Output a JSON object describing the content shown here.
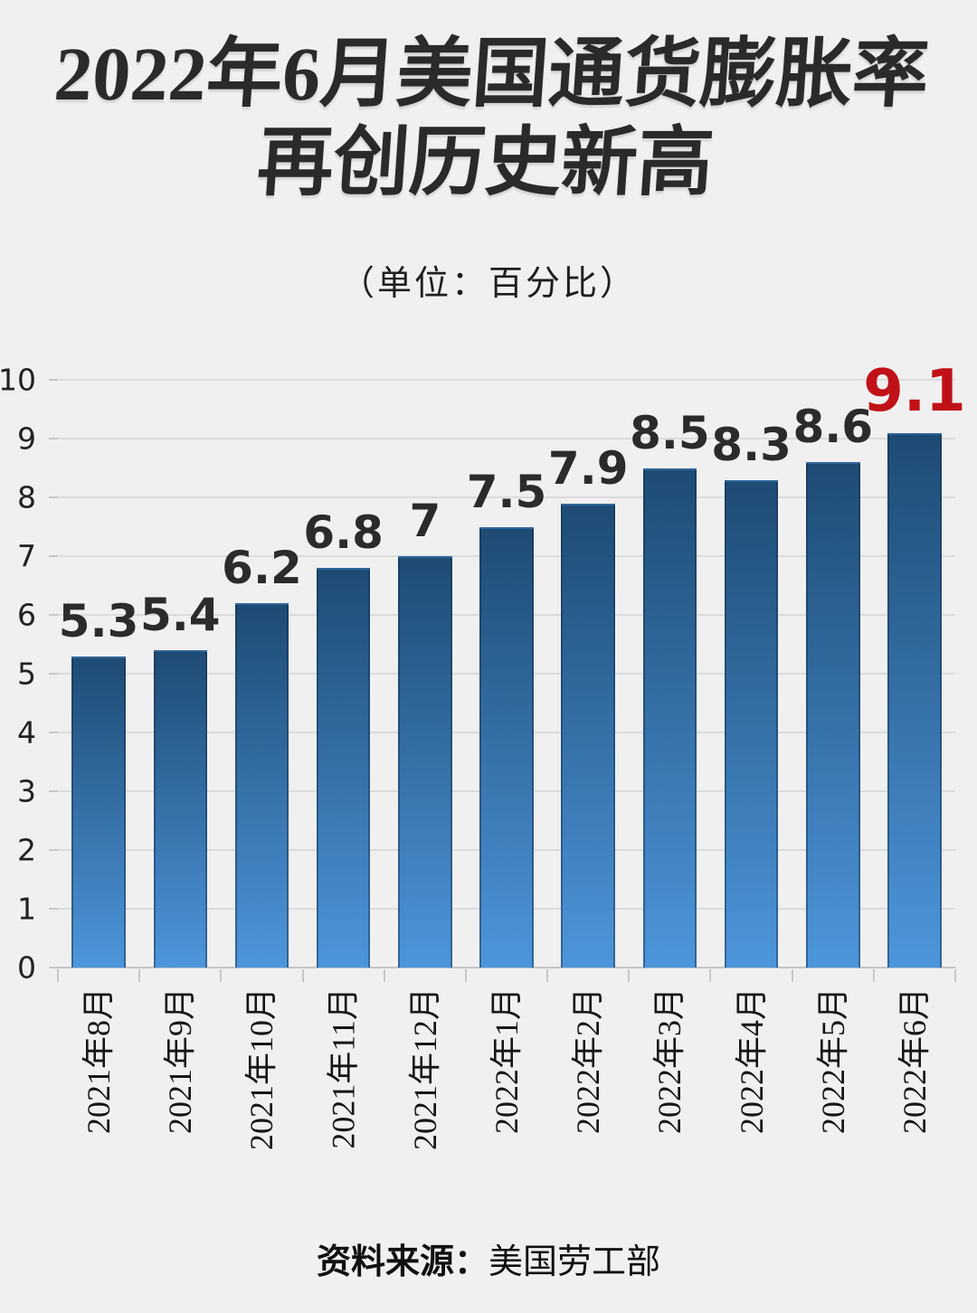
{
  "page": {
    "background": "#f0f0f1"
  },
  "header": {
    "title": "2022年6月美国通货膨胀率\n再创历史新高",
    "subtitle": "（单位：百分比）"
  },
  "chart_data": {
    "type": "bar",
    "title": "2022年6月美国通货膨胀率再创历史新高",
    "unit_note": "（单位：百分比）",
    "categories": [
      "2021年8月",
      "2021年9月",
      "2021年10月",
      "2021年11月",
      "2021年12月",
      "2022年1月",
      "2022年2月",
      "2022年3月",
      "2022年4月",
      "2022年5月",
      "2022年6月"
    ],
    "values": [
      5.3,
      5.4,
      6.2,
      6.8,
      7,
      7.5,
      7.9,
      8.5,
      8.3,
      8.6,
      9.1
    ],
    "ylabel": "",
    "xlabel": "",
    "ylim": [
      0,
      10
    ],
    "yticks": [
      0,
      1,
      2,
      3,
      4,
      5,
      6,
      7,
      8,
      9,
      10
    ],
    "grid": true,
    "legend": "none",
    "bar_gradient_top": "#1e4b74",
    "bar_gradient_bottom": "#4d96db",
    "value_label_color": "#2b2b2b",
    "highlight_index": 10,
    "highlight_color": "#c11118"
  },
  "footer": {
    "source_label": "资料来源：",
    "source_value": "美国劳工部"
  }
}
